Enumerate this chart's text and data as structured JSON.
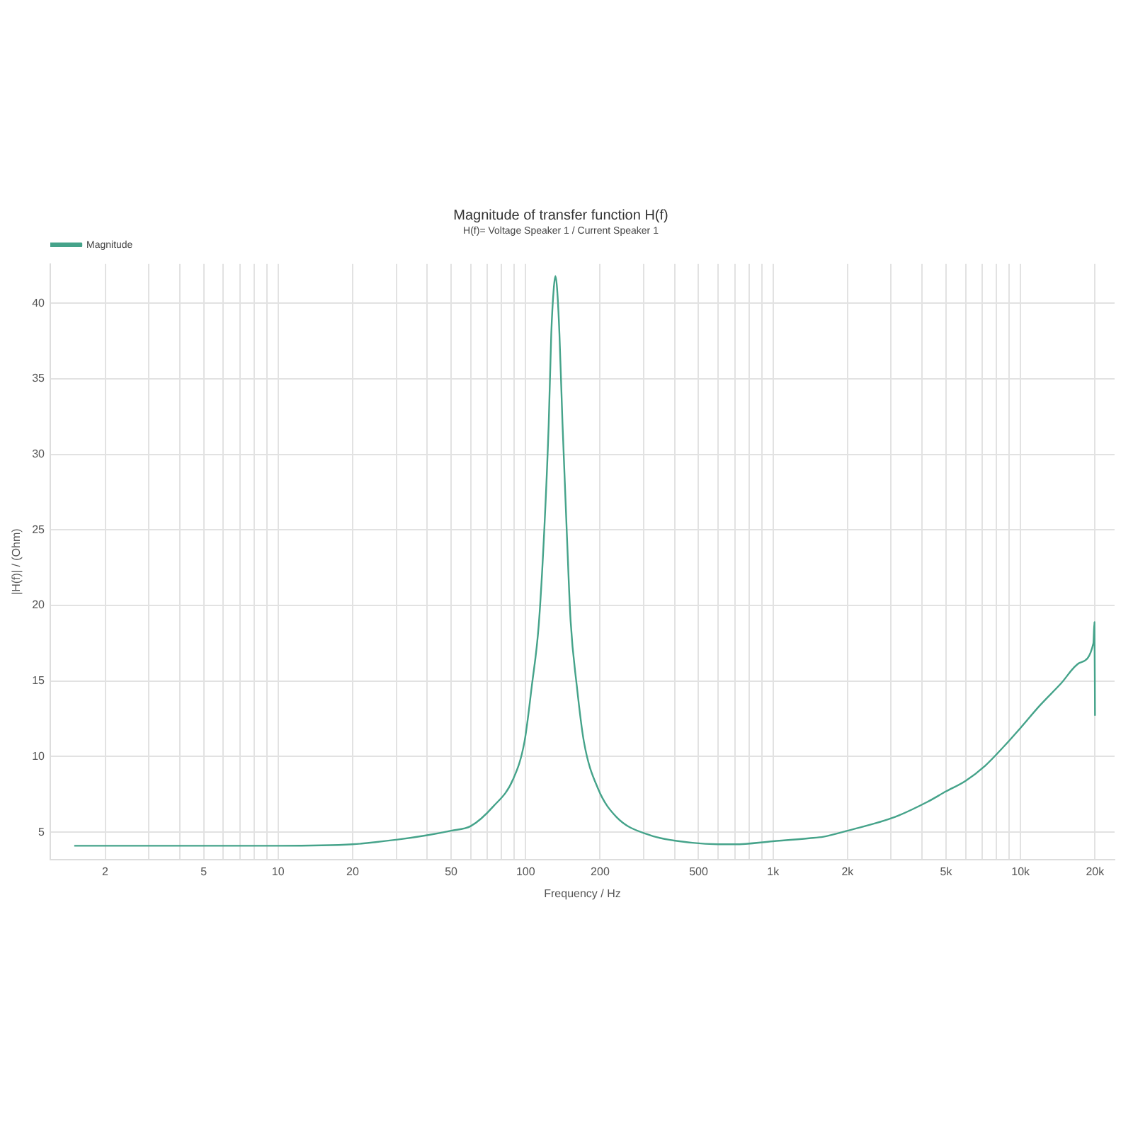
{
  "chart_data": {
    "type": "line",
    "title": "Magnitude of transfer function H(f)",
    "subtitle": "H(f)= Voltage Speaker 1 / Current Speaker 1",
    "xlabel": "Frequency / Hz",
    "ylabel": "|H(f)| / (Ohm)",
    "log": "x",
    "x": [
      1.5,
      3,
      5,
      10,
      20,
      30,
      40,
      50,
      60,
      74,
      89,
      99,
      106,
      113,
      119,
      124,
      127,
      130,
      132,
      134,
      137,
      141,
      147,
      152,
      161,
      172,
      196,
      233,
      318,
      472,
      600,
      700,
      1000,
      1400,
      1600,
      2000,
      3100,
      4200,
      5000,
      6000,
      7200,
      8600,
      10000,
      12000,
      14500,
      17300,
      19700,
      19900,
      20000
    ],
    "series": [
      {
        "name": "Magnitude",
        "color": "#45a38a",
        "values": [
          4.1,
          4.1,
          4.1,
          4.1,
          4.2,
          4.5,
          4.8,
          5.1,
          5.4,
          6.7,
          8.5,
          11.0,
          14.7,
          18.7,
          25,
          32,
          38,
          41,
          41.8,
          41,
          38,
          32,
          24.5,
          19,
          14.7,
          11.0,
          7.9,
          6.0,
          4.8,
          4.3,
          4.2,
          4.2,
          4.4,
          4.6,
          4.7,
          5.1,
          6.0,
          7.0,
          7.7,
          8.4,
          9.4,
          10.7,
          11.9,
          13.4,
          14.8,
          16.2,
          17.5,
          18.9,
          12.7
        ]
      }
    ],
    "xlim": [
      1.2,
      24000
    ],
    "xticks": [
      2,
      {
        "value": 3,
        "label": null
      },
      {
        "value": 4,
        "label": null
      },
      5,
      {
        "value": 6,
        "label": null
      },
      {
        "value": 7,
        "label": null
      },
      {
        "value": 8,
        "label": null
      },
      {
        "value": 9,
        "label": null
      },
      10,
      20,
      {
        "value": 30,
        "label": null
      },
      {
        "value": 40,
        "label": null
      },
      50,
      {
        "value": 60,
        "label": null
      },
      {
        "value": 70,
        "label": null
      },
      {
        "value": 80,
        "label": null
      },
      {
        "value": 90,
        "label": null
      },
      100,
      200,
      {
        "value": 300,
        "label": null
      },
      {
        "value": 400,
        "label": null
      },
      500,
      {
        "value": 600,
        "label": null
      },
      {
        "value": 700,
        "label": null
      },
      {
        "value": 800,
        "label": null
      },
      {
        "value": 900,
        "label": null
      },
      {
        "value": 1000,
        "label": "1k"
      },
      {
        "value": 2000,
        "label": "2k"
      },
      {
        "value": 3000,
        "label": null
      },
      {
        "value": 4000,
        "label": null
      },
      {
        "value": 5000,
        "label": "5k"
      },
      {
        "value": 6000,
        "label": null
      },
      {
        "value": 7000,
        "label": null
      },
      {
        "value": 8000,
        "label": null
      },
      {
        "value": 9000,
        "label": null
      },
      {
        "value": 10000,
        "label": "10k"
      },
      {
        "value": 20000,
        "label": "20k"
      }
    ],
    "ylim": [
      3.2,
      42.6
    ],
    "yticks": [
      5,
      10,
      15,
      20,
      25,
      30,
      35,
      40
    ],
    "grid": true,
    "legend": "top left",
    "marker": "none",
    "line_style": "solid"
  }
}
